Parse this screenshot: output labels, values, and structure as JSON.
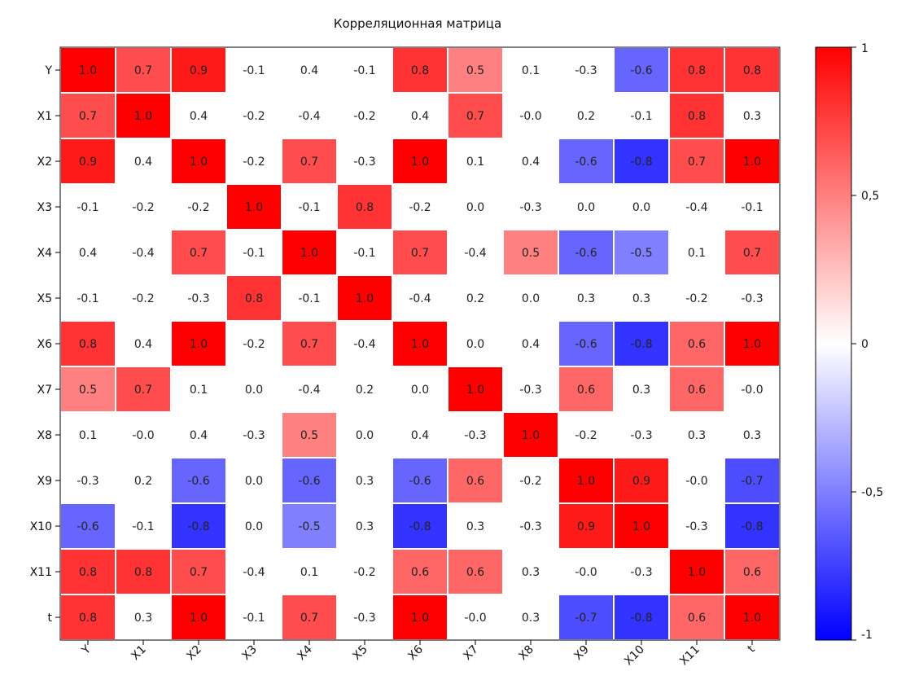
{
  "chart_data": {
    "type": "heatmap",
    "title": "Корреляционная матрица",
    "rows": [
      "Y",
      "X1",
      "X2",
      "X3",
      "X4",
      "X5",
      "X6",
      "X7",
      "X8",
      "X9",
      "X10",
      "X11",
      "t"
    ],
    "cols": [
      "Y",
      "X1",
      "X2",
      "X3",
      "X4",
      "X5",
      "X6",
      "X7",
      "X8",
      "X9",
      "X10",
      "X11",
      "t"
    ],
    "values": [
      [
        1.0,
        0.7,
        0.9,
        -0.1,
        0.4,
        -0.1,
        0.8,
        0.5,
        0.1,
        -0.3,
        -0.6,
        0.8,
        0.8
      ],
      [
        0.7,
        1.0,
        0.4,
        -0.2,
        -0.4,
        -0.2,
        0.4,
        0.7,
        -0.0,
        0.2,
        -0.1,
        0.8,
        0.3
      ],
      [
        0.9,
        0.4,
        1.0,
        -0.2,
        0.7,
        -0.3,
        1.0,
        0.1,
        0.4,
        -0.6,
        -0.8,
        0.7,
        1.0
      ],
      [
        -0.1,
        -0.2,
        -0.2,
        1.0,
        -0.1,
        0.8,
        -0.2,
        0.0,
        -0.3,
        0.0,
        0.0,
        -0.4,
        -0.1
      ],
      [
        0.4,
        -0.4,
        0.7,
        -0.1,
        1.0,
        -0.1,
        0.7,
        -0.4,
        0.5,
        -0.6,
        -0.5,
        0.1,
        0.7
      ],
      [
        -0.1,
        -0.2,
        -0.3,
        0.8,
        -0.1,
        1.0,
        -0.4,
        0.2,
        0.0,
        0.3,
        0.3,
        -0.2,
        -0.3
      ],
      [
        0.8,
        0.4,
        1.0,
        -0.2,
        0.7,
        -0.4,
        1.0,
        0.0,
        0.4,
        -0.6,
        -0.8,
        0.6,
        1.0
      ],
      [
        0.5,
        0.7,
        0.1,
        0.0,
        -0.4,
        0.2,
        0.0,
        1.0,
        -0.3,
        0.6,
        0.3,
        0.6,
        -0.0
      ],
      [
        0.1,
        -0.0,
        0.4,
        -0.3,
        0.5,
        0.0,
        0.4,
        -0.3,
        1.0,
        -0.2,
        -0.3,
        0.3,
        0.3
      ],
      [
        -0.3,
        0.2,
        -0.6,
        0.0,
        -0.6,
        0.3,
        -0.6,
        0.6,
        -0.2,
        1.0,
        0.9,
        -0.0,
        -0.7
      ],
      [
        -0.6,
        -0.1,
        -0.8,
        0.0,
        -0.5,
        0.3,
        -0.8,
        0.3,
        -0.3,
        0.9,
        1.0,
        -0.3,
        -0.8
      ],
      [
        0.8,
        0.8,
        0.7,
        -0.4,
        0.1,
        -0.2,
        0.6,
        0.6,
        0.3,
        -0.0,
        -0.3,
        1.0,
        0.6
      ],
      [
        0.8,
        0.3,
        1.0,
        -0.1,
        0.7,
        -0.3,
        1.0,
        -0.0,
        0.3,
        -0.7,
        -0.8,
        0.6,
        1.0
      ]
    ],
    "color_scale": {
      "range": [
        -1,
        1
      ],
      "colors": {
        "min": "#0000ff",
        "mid": "#ffffff",
        "max": "#ff0000"
      },
      "ticks": [
        1,
        0.5,
        0,
        -0.5,
        -1
      ],
      "tick_labels": [
        "1",
        "0,5",
        "0",
        "-0,5",
        "-1"
      ]
    },
    "masking": "cells with |value| < 0.5 are shown without colour",
    "cell_gap_color": "#ffffff",
    "legend_placement": "right",
    "grid": false
  }
}
